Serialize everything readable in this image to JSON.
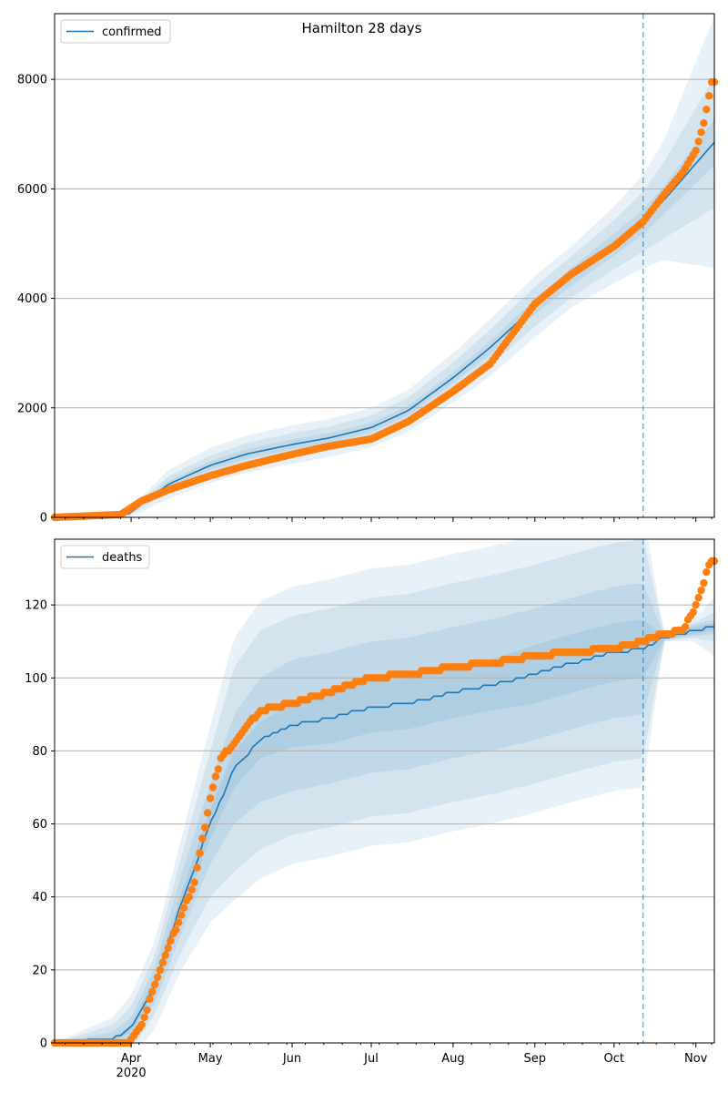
{
  "colors": {
    "model": "#1f77b4",
    "observed": "#ff7f0e",
    "band": "#1f77b4",
    "grid": "#b0b0b0",
    "divider": "#1f77b4"
  },
  "chart_data": [
    {
      "type": "line",
      "title": "Hamilton 28 days",
      "legend": [
        "confirmed"
      ],
      "legend_position": "top-left",
      "grid": "horizontal",
      "x_range": [
        "2020-03-03",
        "2020-11-08"
      ],
      "forecast_start": "2020-10-12",
      "ylim": [
        0,
        9200
      ],
      "y_ticks": [
        "0",
        "2000",
        "4000",
        "6000",
        "8000"
      ],
      "y_tick_values": [
        0,
        2000,
        4000,
        6000,
        8000
      ],
      "x_tick_labels": [],
      "model": {
        "name": "confirmed",
        "x": [
          "2020-03-03",
          "2020-03-31",
          "2020-04-15",
          "2020-05-01",
          "2020-05-15",
          "2020-06-01",
          "2020-06-15",
          "2020-07-01",
          "2020-07-15",
          "2020-08-01",
          "2020-08-15",
          "2020-09-01",
          "2020-09-15",
          "2020-10-01",
          "2020-10-12",
          "2020-10-20",
          "2020-11-08"
        ],
        "values": [
          0,
          60,
          600,
          950,
          1160,
          1330,
          1450,
          1640,
          1950,
          2550,
          3100,
          3850,
          4400,
          4980,
          5400,
          5800,
          6850
        ],
        "band_half_widths": [
          [
            0,
            20,
            60,
            80,
            90,
            90,
            90,
            90,
            90,
            100,
            120,
            140,
            160,
            200,
            220,
            260,
            420
          ],
          [
            0,
            40,
            140,
            180,
            200,
            210,
            210,
            220,
            240,
            280,
            330,
            360,
            380,
            450,
            550,
            700,
            1200
          ],
          [
            0,
            70,
            260,
            320,
            340,
            350,
            350,
            360,
            380,
            450,
            520,
            560,
            560,
            700,
            850,
            1100,
            2300
          ]
        ]
      },
      "observed": {
        "x": [
          "2020-03-03",
          "2020-03-28",
          "2020-04-05",
          "2020-04-15",
          "2020-05-01",
          "2020-05-15",
          "2020-06-01",
          "2020-06-15",
          "2020-07-01",
          "2020-07-15",
          "2020-08-01",
          "2020-08-15",
          "2020-09-01",
          "2020-09-15",
          "2020-10-01",
          "2020-10-12",
          "2020-10-20",
          "2020-10-27",
          "2020-11-01",
          "2020-11-04",
          "2020-11-07"
        ],
        "values": [
          0,
          50,
          300,
          500,
          760,
          950,
          1150,
          1300,
          1430,
          1750,
          2300,
          2800,
          3900,
          4450,
          4950,
          5400,
          5900,
          6300,
          6700,
          7200,
          7950
        ]
      }
    },
    {
      "type": "line",
      "title": "",
      "legend": [
        "deaths"
      ],
      "legend_position": "top-left",
      "grid": "horizontal",
      "x_range": [
        "2020-03-03",
        "2020-11-08"
      ],
      "forecast_start": "2020-10-12",
      "ylim": [
        0,
        138
      ],
      "y_ticks": [
        "0",
        "20",
        "40",
        "60",
        "80",
        "100",
        "120"
      ],
      "y_tick_values": [
        0,
        20,
        40,
        60,
        80,
        100,
        120
      ],
      "x_tick_labels": [
        "Apr",
        "May",
        "Jun",
        "Jul",
        "Aug",
        "Sep",
        "Oct",
        "Nov"
      ],
      "x_tick_dates": [
        "2020-04-01",
        "2020-05-01",
        "2020-06-01",
        "2020-07-01",
        "2020-08-01",
        "2020-09-01",
        "2020-10-01",
        "2020-11-01"
      ],
      "year_label": "2020",
      "model": {
        "name": "deaths",
        "x": [
          "2020-03-03",
          "2020-03-25",
          "2020-04-01",
          "2020-04-10",
          "2020-04-20",
          "2020-05-01",
          "2020-05-10",
          "2020-05-20",
          "2020-06-01",
          "2020-06-15",
          "2020-07-01",
          "2020-07-15",
          "2020-08-01",
          "2020-08-15",
          "2020-09-01",
          "2020-09-15",
          "2020-10-01",
          "2020-10-12",
          "2020-10-20",
          "2020-10-31",
          "2020-11-08"
        ],
        "values": [
          0,
          1,
          4,
          16,
          38,
          60,
          75,
          83,
          87,
          89,
          92,
          93,
          96,
          98,
          101,
          104,
          107,
          108,
          111,
          113,
          114
        ],
        "band_half_widths": [
          [
            0,
            0.5,
            1,
            2,
            3,
            4,
            5,
            5,
            6,
            7,
            7,
            7,
            7,
            7,
            8,
            8,
            8,
            8,
            0.5,
            1,
            1
          ],
          [
            0,
            2,
            3,
            5,
            8,
            11,
            15,
            17,
            18,
            18,
            18,
            18,
            18,
            18,
            18,
            18,
            18,
            18,
            0.5,
            1.5,
            2
          ],
          [
            0,
            4,
            6,
            8,
            13,
            20,
            28,
            30,
            30,
            30,
            30,
            30,
            30,
            30,
            30,
            30,
            30,
            30,
            1,
            2,
            4
          ],
          [
            0,
            6,
            9,
            12,
            18,
            27,
            36,
            38,
            38,
            38,
            38,
            38,
            38,
            38,
            38,
            38,
            38,
            38,
            1,
            3,
            8
          ]
        ]
      },
      "observed": {
        "x": [
          "2020-03-03",
          "2020-03-31",
          "2020-04-05",
          "2020-04-10",
          "2020-04-15",
          "2020-04-20",
          "2020-04-25",
          "2020-05-01",
          "2020-05-05",
          "2020-05-10",
          "2020-05-15",
          "2020-05-20",
          "2020-06-01",
          "2020-06-15",
          "2020-07-01",
          "2020-07-15",
          "2020-08-01",
          "2020-08-15",
          "2020-09-01",
          "2020-09-15",
          "2020-10-01",
          "2020-10-12",
          "2020-10-20",
          "2020-10-27",
          "2020-10-31",
          "2020-11-03",
          "2020-11-06",
          "2020-11-08"
        ],
        "values": [
          0,
          0,
          5,
          16,
          26,
          35,
          44,
          67,
          78,
          82,
          87,
          91,
          93,
          96,
          100,
          101,
          103,
          104,
          106,
          107,
          108,
          110,
          112,
          113,
          118,
          124,
          131,
          132
        ]
      }
    }
  ]
}
